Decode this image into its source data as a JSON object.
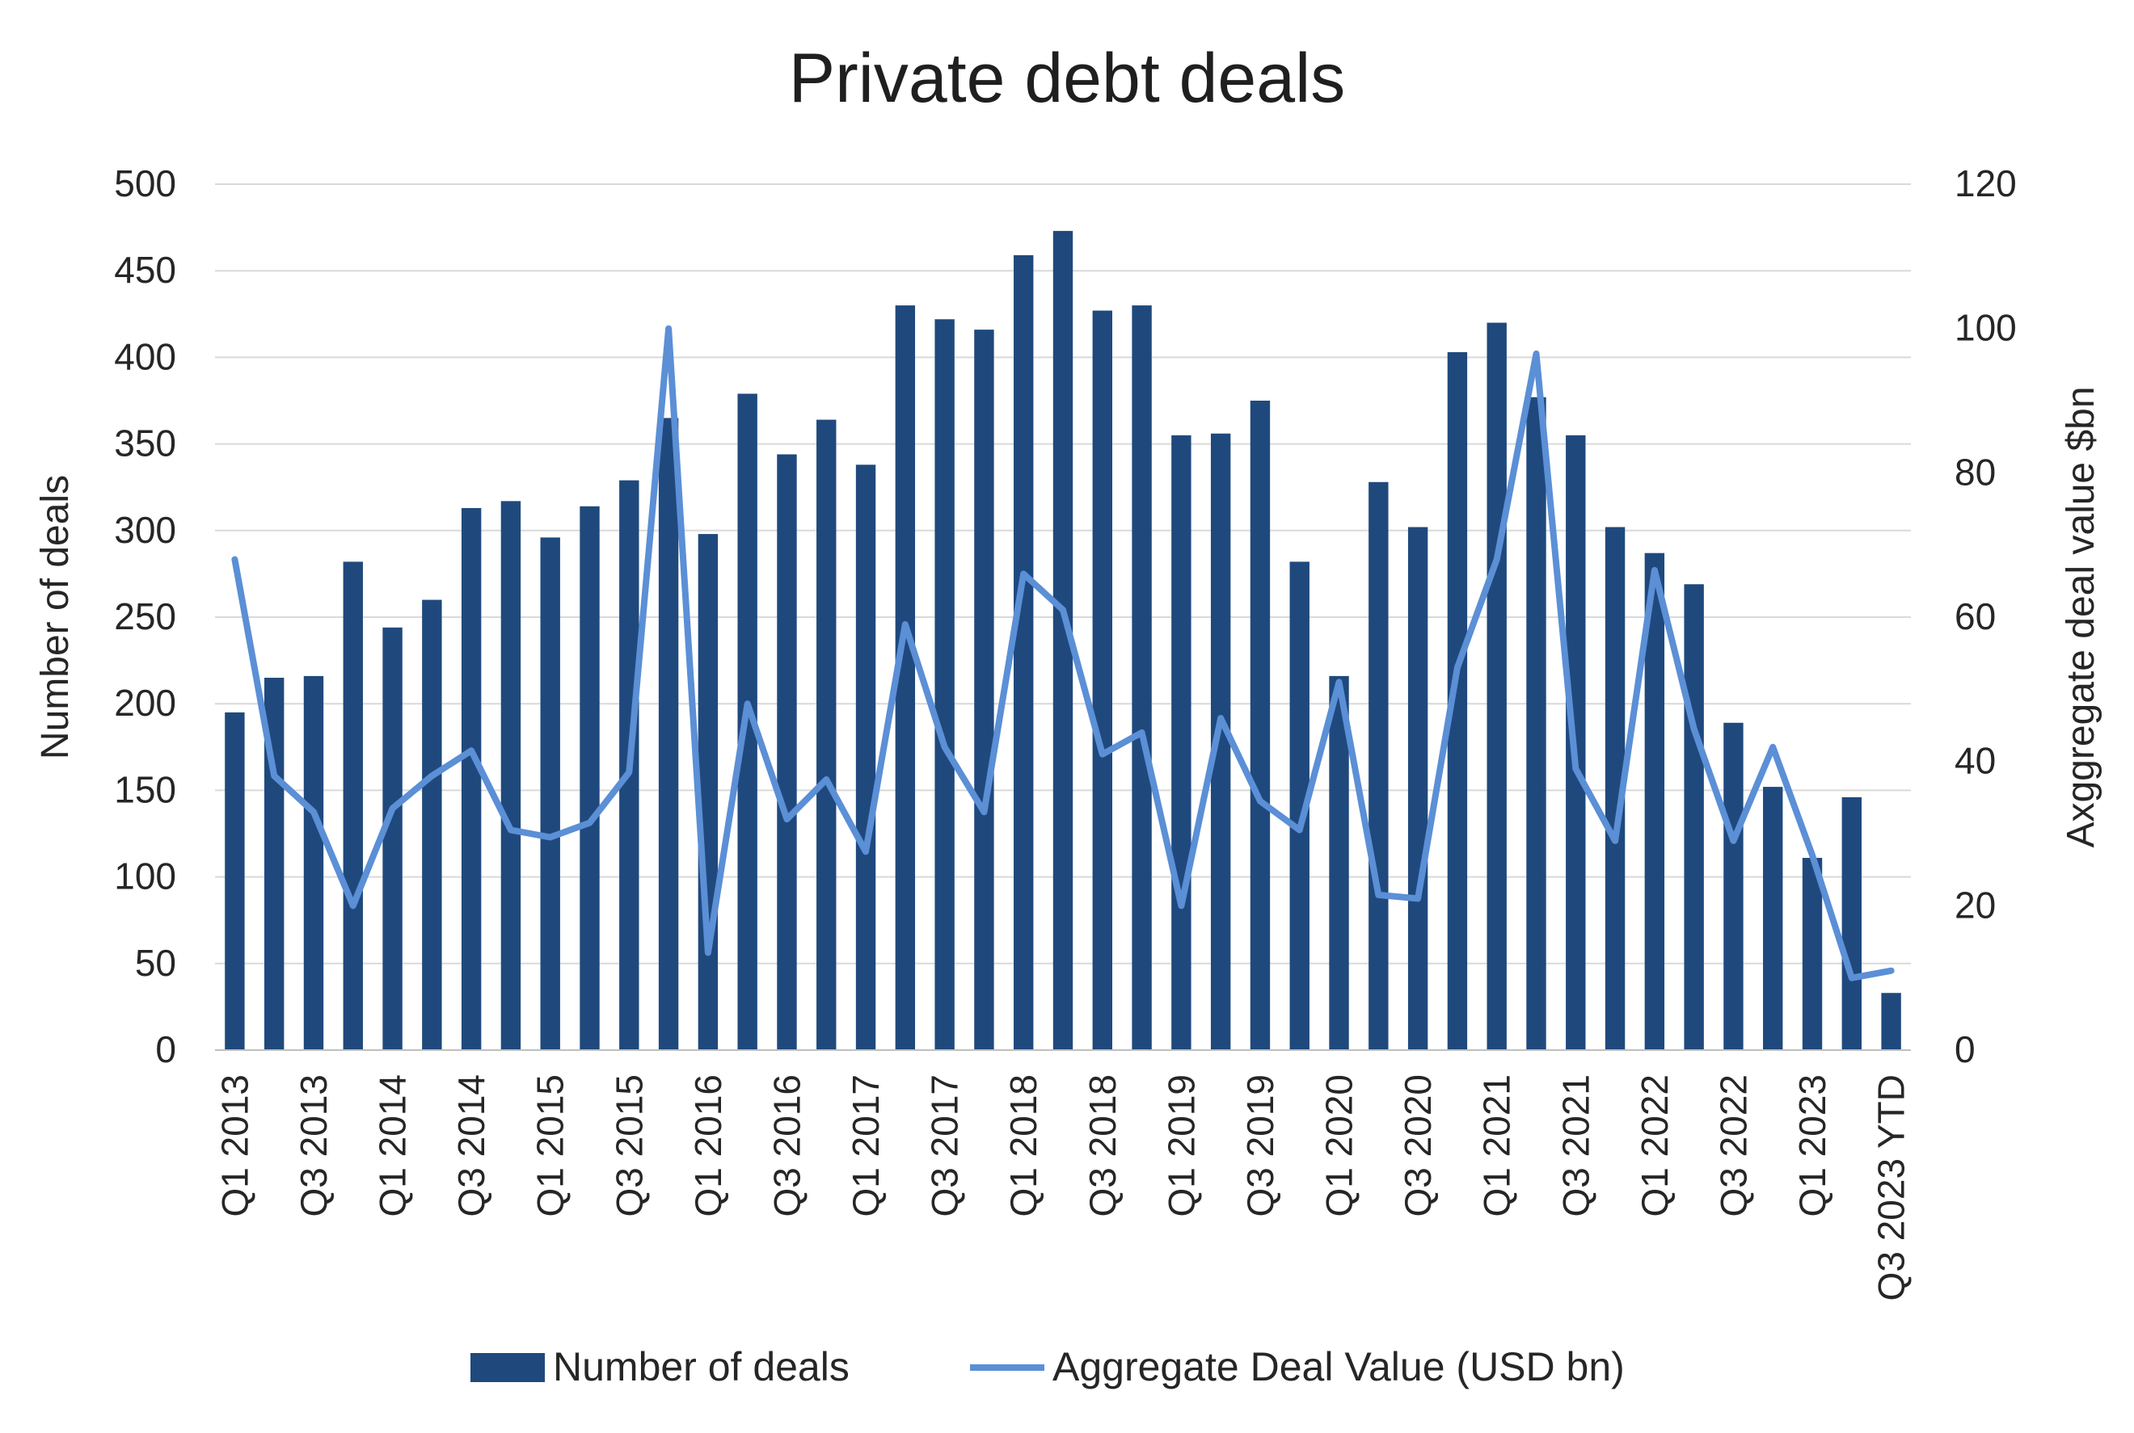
{
  "chart_data": {
    "type": "bar",
    "title": "Private debt deals",
    "ylabel": "Number of deals",
    "y2label": "Axggregate deal value $bn",
    "xlabel": "",
    "ylim": [
      0,
      500
    ],
    "y2lim": [
      0,
      120
    ],
    "yticks": [
      0,
      50,
      100,
      150,
      200,
      250,
      300,
      350,
      400,
      450,
      500
    ],
    "y2ticks": [
      0,
      20,
      40,
      60,
      80,
      100,
      120
    ],
    "grid": true,
    "legend": "bottom",
    "categories": [
      "Q1 2013",
      "Q2 2013",
      "Q3 2013",
      "Q4 2013",
      "Q1 2014",
      "Q2 2014",
      "Q3 2014",
      "Q4 2014",
      "Q1 2015",
      "Q2 2015",
      "Q3 2015",
      "Q4 2015",
      "Q1 2016",
      "Q2 2016",
      "Q3 2016",
      "Q4 2016",
      "Q1 2017",
      "Q2 2017",
      "Q3 2017",
      "Q4 2017",
      "Q1 2018",
      "Q2 2018",
      "Q3 2018",
      "Q4 2018",
      "Q1 2019",
      "Q2 2019",
      "Q3 2019",
      "Q4 2019",
      "Q1 2020",
      "Q2 2020",
      "Q3 2020",
      "Q4 2020",
      "Q1 2021",
      "Q2 2021",
      "Q3 2021",
      "Q4 2021",
      "Q1 2022",
      "Q2 2022",
      "Q3 2022",
      "Q4 2022",
      "Q1 2023",
      "Q2 2023",
      "Q3 2023 YTD"
    ],
    "tick_labels": [
      "Q1 2013",
      "",
      "Q3 2013",
      "",
      "Q1 2014",
      "",
      "Q3 2014",
      "",
      "Q1 2015",
      "",
      "Q3 2015",
      "",
      "Q1 2016",
      "",
      "Q3 2016",
      "",
      "Q1 2017",
      "",
      "Q3 2017",
      "",
      "Q1 2018",
      "",
      "Q3 2018",
      "",
      "Q1 2019",
      "",
      "Q3 2019",
      "",
      "Q1 2020",
      "",
      "Q3 2020",
      "",
      "Q1 2021",
      "",
      "Q3 2021",
      "",
      "Q1 2022",
      "",
      "Q3 2022",
      "",
      "Q1 2023",
      "",
      "Q3 2023 YTD"
    ],
    "series": [
      {
        "name": "Number of deals",
        "type": "bar",
        "axis": "left",
        "color": "#1f497d",
        "values": [
          195,
          215,
          216,
          282,
          244,
          260,
          313,
          317,
          296,
          314,
          329,
          365,
          298,
          379,
          344,
          364,
          338,
          430,
          422,
          416,
          459,
          473,
          427,
          430,
          355,
          356,
          375,
          282,
          216,
          328,
          302,
          403,
          420,
          377,
          355,
          302,
          287,
          269,
          189,
          152,
          111,
          146,
          33
        ]
      },
      {
        "name": "Aggregate Deal Value (USD bn)",
        "type": "line",
        "axis": "right",
        "color": "#5b8fd6",
        "values": [
          68,
          38,
          33,
          20,
          33.5,
          38,
          41.5,
          30.5,
          29.5,
          31.5,
          38.5,
          100,
          13.5,
          48,
          32,
          37.5,
          27.5,
          59,
          42,
          33,
          66,
          61,
          41,
          44,
          20,
          46,
          34.5,
          30.5,
          51,
          21.5,
          21,
          53,
          68,
          96.5,
          39,
          29,
          66.5,
          44.5,
          29,
          42,
          27,
          10,
          11
        ]
      }
    ]
  }
}
